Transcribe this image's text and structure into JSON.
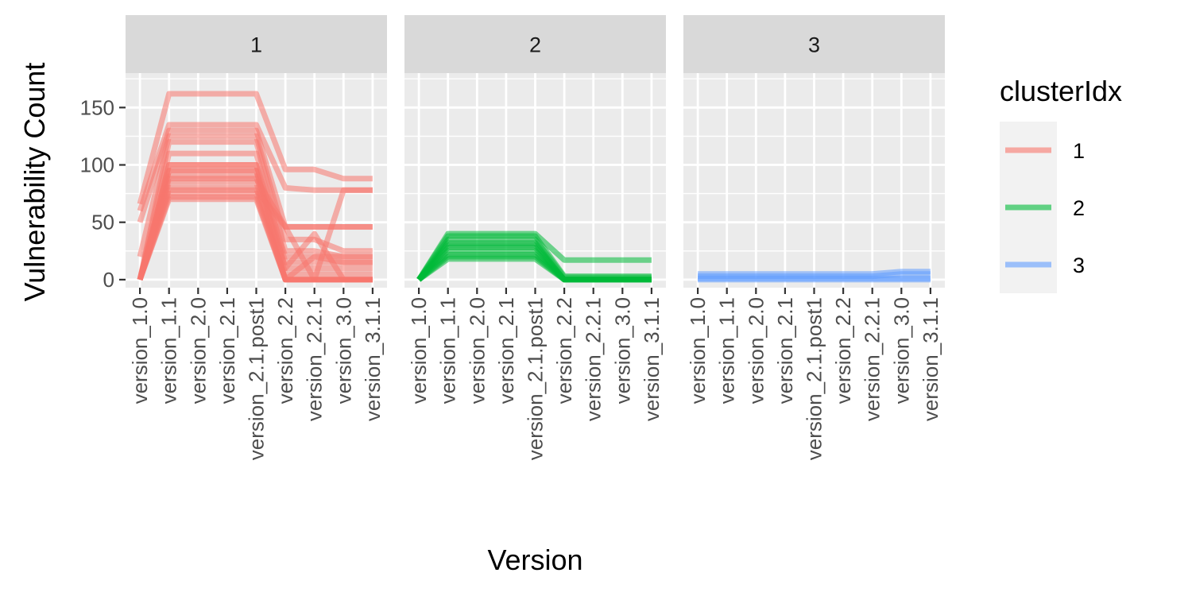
{
  "chart_data": {
    "type": "line",
    "xlabel": "Version",
    "ylabel": "Vulnerability Count",
    "ylim": [
      -7,
      180
    ],
    "y_ticks": [
      "0",
      "50",
      "100",
      "150"
    ],
    "y_tick_values": [
      0,
      50,
      100,
      150
    ],
    "categories": [
      "version_1.0",
      "version_1.1",
      "version_2.0",
      "version_2.1",
      "version_2.1.post1",
      "version_2.2",
      "version_2.2.1",
      "version_3.0",
      "version_3.1.1"
    ],
    "grid": true,
    "legend": {
      "title": "clusterIdx",
      "position": "right",
      "entries": [
        {
          "label": "1",
          "color": "#F8766D"
        },
        {
          "label": "2",
          "color": "#00BA38"
        },
        {
          "label": "3",
          "color": "#619CFF"
        }
      ]
    },
    "facets": [
      {
        "strip": "1",
        "color": "#F8766D",
        "series": [
          {
            "values": [
              66,
              162,
              162,
              162,
              162,
              96,
              96,
              88,
              88
            ]
          },
          {
            "values": [
              60,
              135,
              135,
              135,
              135,
              80,
              78,
              78,
              78
            ]
          },
          {
            "values": [
              50,
              130,
              130,
              130,
              130,
              46,
              46,
              46,
              46
            ]
          },
          {
            "values": [
              20,
              125,
              125,
              125,
              125,
              35,
              35,
              25,
              25
            ]
          },
          {
            "values": [
              0,
              120,
              120,
              120,
              120,
              25,
              25,
              20,
              20
            ]
          },
          {
            "values": [
              0,
              110,
              110,
              110,
              110,
              15,
              15,
              15,
              15
            ]
          },
          {
            "values": [
              0,
              100,
              100,
              100,
              100,
              10,
              10,
              10,
              10
            ]
          },
          {
            "values": [
              0,
              95,
              95,
              95,
              95,
              5,
              5,
              5,
              5
            ]
          },
          {
            "values": [
              0,
              90,
              90,
              90,
              90,
              0,
              0,
              0,
              0
            ]
          },
          {
            "values": [
              0,
              85,
              85,
              85,
              85,
              0,
              0,
              0,
              0
            ]
          },
          {
            "values": [
              0,
              80,
              80,
              80,
              80,
              0,
              0,
              0,
              0
            ]
          },
          {
            "values": [
              0,
              75,
              75,
              75,
              75,
              0,
              0,
              0,
              0
            ]
          },
          {
            "values": [
              0,
              70,
              70,
              70,
              70,
              0,
              0,
              0,
              0
            ]
          },
          {
            "values": [
              0,
              88,
              88,
              88,
              88,
              46,
              46,
              46,
              46
            ]
          },
          {
            "values": [
              0,
              78,
              78,
              78,
              78,
              46,
              0,
              78,
              78
            ]
          },
          {
            "values": [
              0,
              95,
              95,
              95,
              95,
              10,
              40,
              0,
              0
            ]
          },
          {
            "values": [
              0,
              72,
              72,
              72,
              72,
              0,
              20,
              15,
              15
            ]
          },
          {
            "values": [
              0,
              100,
              100,
              100,
              100,
              20,
              20,
              20,
              20
            ]
          }
        ]
      },
      {
        "strip": "2",
        "color": "#00BA38",
        "series": [
          {
            "values": [
              0,
              40,
              40,
              40,
              40,
              17,
              17,
              17,
              17
            ]
          },
          {
            "values": [
              0,
              38,
              38,
              38,
              38,
              3,
              3,
              3,
              3
            ]
          },
          {
            "values": [
              0,
              35,
              35,
              35,
              35,
              2,
              2,
              2,
              2
            ]
          },
          {
            "values": [
              0,
              32,
              32,
              32,
              32,
              0,
              0,
              0,
              0
            ]
          },
          {
            "values": [
              0,
              30,
              30,
              30,
              30,
              0,
              0,
              0,
              0
            ]
          },
          {
            "values": [
              0,
              28,
              28,
              28,
              28,
              0,
              0,
              0,
              0
            ]
          },
          {
            "values": [
              0,
              25,
              25,
              25,
              25,
              0,
              0,
              0,
              0
            ]
          },
          {
            "values": [
              0,
              22,
              22,
              22,
              22,
              0,
              0,
              0,
              0
            ]
          },
          {
            "values": [
              0,
              20,
              20,
              20,
              20,
              0,
              0,
              0,
              0
            ]
          },
          {
            "values": [
              0,
              18,
              18,
              18,
              18,
              0,
              0,
              0,
              0
            ]
          }
        ]
      },
      {
        "strip": "3",
        "color": "#619CFF",
        "series": [
          {
            "values": [
              5,
              5,
              5,
              5,
              5,
              5,
              5,
              7,
              7
            ]
          },
          {
            "values": [
              3,
              3,
              3,
              3,
              3,
              3,
              3,
              5,
              5
            ]
          },
          {
            "values": [
              0,
              0,
              0,
              0,
              0,
              0,
              0,
              0,
              0
            ]
          },
          {
            "values": [
              1,
              1,
              1,
              1,
              1,
              1,
              1,
              1,
              1
            ]
          }
        ]
      }
    ]
  }
}
